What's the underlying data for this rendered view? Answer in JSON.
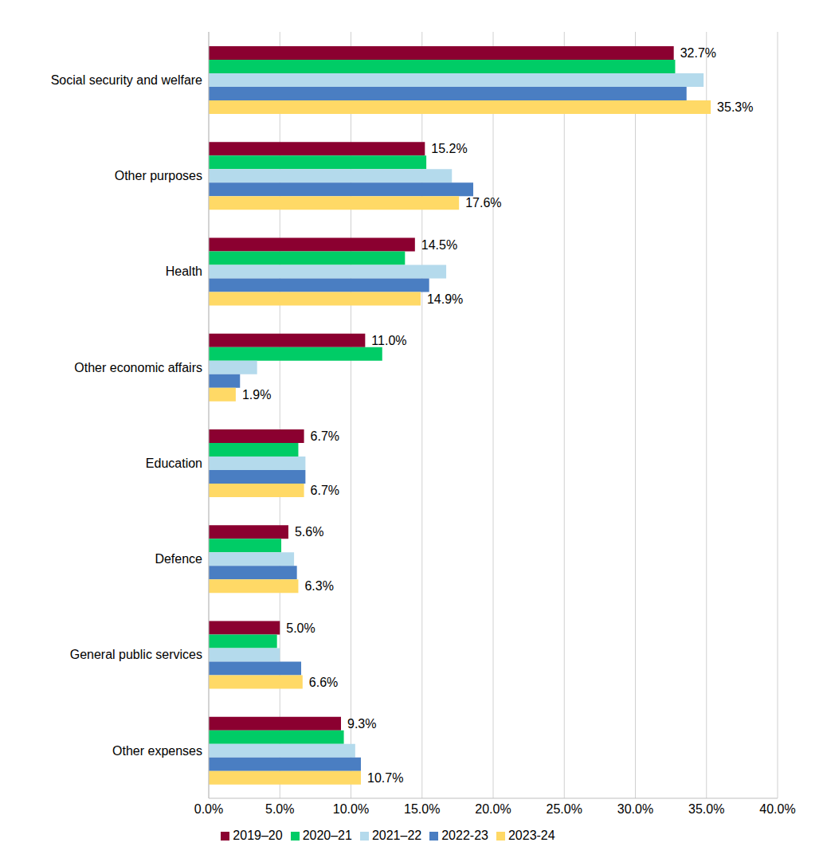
{
  "chart_data": {
    "type": "bar",
    "orientation": "horizontal",
    "grid": true,
    "legend": "bottom",
    "categories": [
      "Social security and welfare",
      "Other purposes",
      "Health",
      "Other economic affairs",
      "Education",
      "Defence",
      "General public services",
      "Other expenses"
    ],
    "series": [
      {
        "name": "2019–20",
        "color": "#8b0030",
        "values": [
          32.7,
          15.2,
          14.5,
          11.0,
          6.7,
          5.6,
          5.0,
          9.3
        ],
        "data_labels": true,
        "value_labels": [
          "32.7%",
          "15.2%",
          "14.5%",
          "11.0%",
          "6.7%",
          "5.6%",
          "5.0%",
          "9.3%"
        ]
      },
      {
        "name": "2020–21",
        "color": "#00cc66",
        "values": [
          32.8,
          15.3,
          13.8,
          12.2,
          6.3,
          5.1,
          4.8,
          9.5
        ],
        "data_labels": false
      },
      {
        "name": "2021–22",
        "color": "#b4daec",
        "values": [
          34.8,
          17.1,
          16.7,
          3.4,
          6.8,
          6.0,
          5.0,
          10.3
        ],
        "data_labels": false
      },
      {
        "name": "2022-23",
        "color": "#4a7ec2",
        "values": [
          33.6,
          18.6,
          15.5,
          2.2,
          6.8,
          6.2,
          6.5,
          10.7
        ],
        "data_labels": false
      },
      {
        "name": "2023-24",
        "color": "#ffd966",
        "values": [
          35.3,
          17.6,
          14.9,
          1.9,
          6.7,
          6.3,
          6.6,
          10.7
        ],
        "data_labels": true,
        "value_labels": [
          "35.3%",
          "17.6%",
          "14.9%",
          "1.9%",
          "6.7%",
          "6.3%",
          "6.6%",
          "10.7%"
        ]
      }
    ],
    "xlim": [
      0,
      40
    ],
    "xticks": [
      {
        "value": 0,
        "label": "0.0%"
      },
      {
        "value": 5,
        "label": "5.0%"
      },
      {
        "value": 10,
        "label": "10.0%"
      },
      {
        "value": 15,
        "label": "15.0%"
      },
      {
        "value": 20,
        "label": "20.0%"
      },
      {
        "value": 25,
        "label": "25.0%"
      },
      {
        "value": 30,
        "label": "30.0%"
      },
      {
        "value": 35,
        "label": "35.0%"
      },
      {
        "value": 40,
        "label": "40.0%"
      }
    ]
  }
}
